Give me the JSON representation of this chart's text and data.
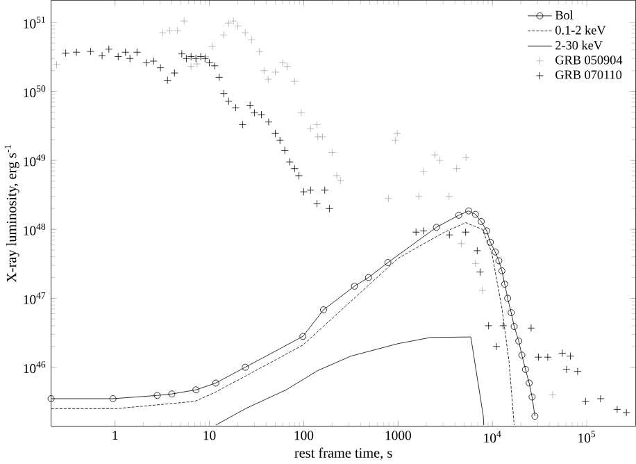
{
  "chart_data": {
    "type": "line",
    "xlabel": "rest frame time, s",
    "ylabel": "X-ray luminosity, erg s$^{-1}$",
    "log": "xy",
    "legend": "top right",
    "xlim": [
      0.21,
      330000
    ],
    "ylim": [
      1.4e+45,
      2.1e+51
    ],
    "xticks": [
      1,
      10,
      100,
      1000,
      {
        "value": 10000,
        "label": "10$^{4}$"
      },
      {
        "value": 100000,
        "label": "10$^{5}$"
      }
    ],
    "yticks": [
      {
        "value": 1e+46,
        "label": "10$^{46}$"
      },
      {
        "value": 1e+47,
        "label": "10$^{47}$"
      },
      {
        "value": 1e+48,
        "label": "10$^{48}$"
      },
      {
        "value": 1e+49,
        "label": "10$^{49}$"
      },
      {
        "value": 1e+50,
        "label": "10$^{50}$"
      },
      {
        "value": 1e+51,
        "label": "10$^{51}$"
      }
    ],
    "series": [
      {
        "name": "Bol",
        "color": "#000000",
        "marker": "circle",
        "line_style": "solid",
        "x": [
          0.21,
          0.95,
          2.8,
          4,
          7.2,
          11.7,
          24,
          98,
          162,
          345,
          486,
          780,
          2550,
          4400,
          5600,
          6600,
          7600,
          8700,
          9500,
          10700,
          11700,
          12600,
          13500,
          14500,
          15800,
          17000,
          19000,
          20500,
          22400,
          24500,
          26300,
          28200
        ],
        "values": [
          3.5e+45,
          3.5e+45,
          3.9e+45,
          4.1e+45,
          4.7e+45,
          5.9e+45,
          1e+46,
          2.8e+46,
          6.8e+46,
          1.5e+47,
          2e+47,
          3.3e+47,
          1.07e+48,
          1.6e+48,
          1.85e+48,
          1.65e+48,
          1.3e+48,
          9.5e+47,
          6.5e+47,
          4.7e+47,
          3.5e+47,
          2.5e+47,
          1.6e+47,
          1e+47,
          6.2e+46,
          3.9e+46,
          2.4e+46,
          1.5e+46,
          9.3e+45,
          5.9e+45,
          3.7e+45,
          1.95e+45
        ]
      },
      {
        "name": "0.1-2 keV",
        "color": "#000000",
        "marker": "none",
        "line_style": "dashed",
        "x": [
          0.21,
          1,
          7,
          11,
          24,
          98,
          1000,
          3000,
          5200,
          7800,
          9800,
          12600,
          15000,
          17000
        ],
        "values": [
          2.5e+45,
          2.5e+45,
          3.2e+45,
          4.2e+45,
          7.4e+45,
          2.1e+46,
          3.8e+47,
          8.9e+47,
          1.25e+48,
          1e+48,
          4.7e+47,
          7.2e+46,
          1.2e+46,
          1.45e+45
        ]
      },
      {
        "name": "2-30  keV",
        "color": "#000000",
        "marker": "none",
        "line_style": "solid",
        "x": [
          11.7,
          24,
          65,
          140,
          316,
          1000,
          2200,
          5900,
          8000,
          8100
        ],
        "values": [
          1.45e+45,
          2.5e+45,
          4.7e+45,
          8.9e+45,
          1.45e+46,
          2.2e+46,
          2.7e+46,
          2.75e+46,
          1.95e+45,
          1.45e+45
        ]
      },
      {
        "name": "GRB 050904",
        "type": "scatter",
        "color": "#aaaaaa",
        "marker": "cross",
        "x": [
          0.24,
          3.2,
          3.8,
          4.6,
          5.4,
          6.4,
          7.4,
          9.1,
          10.7,
          14.2,
          16,
          18,
          20,
          24,
          28,
          34,
          38,
          42,
          50,
          60,
          67,
          80,
          94,
          118,
          138,
          141,
          158,
          200,
          224,
          245,
          790,
          935,
          980,
          1660,
          1860,
          2450,
          2760,
          3470,
          4170,
          5240,
          4680,
          6600,
          7800,
          43500
        ],
        "values": [
          2.45e+50,
          7.1e+50,
          7.6e+50,
          7.6e+50,
          1.05e+51,
          2.3e+50,
          2.5e+50,
          3.2e+50,
          4.5e+50,
          6.6e+50,
          9.8e+50,
          1.05e+51,
          8.9e+50,
          7.1e+50,
          5.6e+50,
          3.8e+50,
          2e+50,
          1.5e+50,
          1.9e+50,
          2.6e+50,
          2.3e+50,
          1.4e+50,
          4.9e+49,
          2.9e+49,
          3.3e+49,
          2.2e+49,
          2.2e+49,
          1.3e+49,
          6e+48,
          5.1e+48,
          2.8e+48,
          1.95e+49,
          2.45e+49,
          3e+48,
          6.9e+48,
          1.2e+49,
          1e+49,
          3e+48,
          7.6e+48,
          1.1e+49,
          6.2e+47,
          3.2e+47,
          1.3e+47,
          4e+45
        ]
      },
      {
        "name": "GRB 070110",
        "type": "scatter",
        "color": "#000000",
        "marker": "cross",
        "x": [
          0.3,
          0.39,
          0.55,
          0.73,
          0.86,
          1.08,
          1.29,
          1.44,
          1.71,
          2.15,
          2.56,
          3.03,
          3.6,
          4.27,
          5.1,
          5.7,
          6.4,
          7.2,
          8.1,
          9,
          10,
          11.4,
          12.7,
          14.2,
          16,
          19,
          22.5,
          27,
          30,
          35.6,
          42.5,
          50,
          56,
          63,
          71,
          80,
          89,
          100,
          118,
          138,
          167,
          187,
          1550,
          1860,
          3500,
          5200,
          6900,
          7400,
          9100,
          11000,
          13000,
          25700,
          30700,
          38600,
          55000,
          61000,
          67000,
          80000,
          97000,
          140000,
          210000,
          263000
        ],
        "values": [
          3.6e+50,
          3.7e+50,
          3.8e+50,
          3.3e+50,
          4.1e+50,
          3.2e+50,
          3.7e+50,
          3e+50,
          3.7e+50,
          2.6e+50,
          2.75e+50,
          2.2e+50,
          1.45e+50,
          1.85e+50,
          3.5e+50,
          3e+50,
          3.2e+50,
          3e+50,
          3.2e+50,
          3e+50,
          2.6e+50,
          2.35e+50,
          1.6e+50,
          9.3e+49,
          7.2e+49,
          5.8e+49,
          3.3e+49,
          6.3e+49,
          4.9e+49,
          4.6e+49,
          3.6e+49,
          2.45e+49,
          1.95e+49,
          1.4e+49,
          9.5e+48,
          7.6e+48,
          6e+48,
          3.5e+48,
          3.7e+48,
          2.35e+48,
          3.7e+48,
          2e+48,
          9.1e+47,
          9.5e+47,
          8.3e+47,
          9.1e+47,
          4.9e+47,
          2.4e+47,
          4e+46,
          2e+46,
          4e+46,
          3.7e+46,
          1.4e+46,
          1.4e+46,
          1.6e+46,
          9.3e+45,
          1.45e+46,
          8.7e+45,
          3.2e+45,
          3.5e+45,
          2.45e+45,
          2.2e+45
        ]
      }
    ]
  }
}
